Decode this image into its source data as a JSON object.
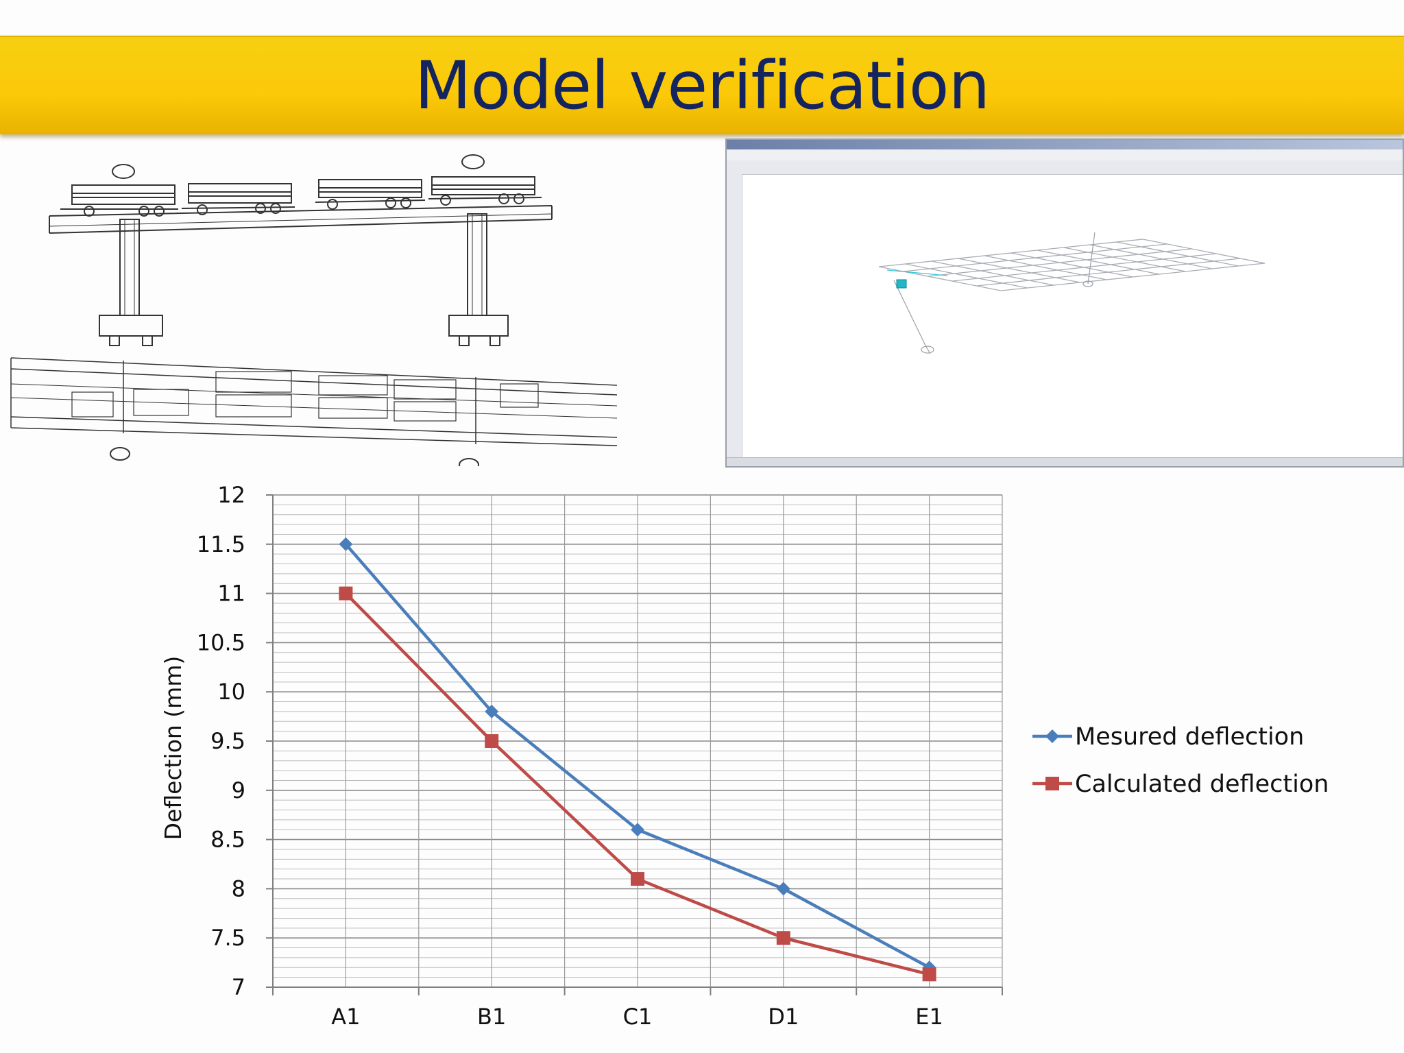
{
  "slide": {
    "title": "Model verification"
  },
  "colors": {
    "title_bar": "#fbc908",
    "title_text": "#14245e",
    "measured": "#4a7ebb",
    "calculated": "#be4b48"
  },
  "images": {
    "bridge_drawing": "bridge elevation and plan sketch with trucks",
    "software_window": "structural analysis software grid model"
  },
  "chart_data": {
    "type": "line",
    "categories": [
      "A1",
      "B1",
      "C1",
      "D1",
      "E1"
    ],
    "series": [
      {
        "name": "Mesured deflection",
        "marker": "diamond",
        "color": "#4a7ebb",
        "values": [
          11.5,
          9.8,
          8.6,
          8.0,
          7.2
        ]
      },
      {
        "name": "Calculated deflection",
        "marker": "square",
        "color": "#be4b48",
        "values": [
          11.0,
          9.5,
          8.1,
          7.5,
          7.13
        ]
      }
    ],
    "ylabel": "Deflection (mm)",
    "xlabel": "",
    "ylim": [
      7,
      12
    ],
    "yticks": [
      "7",
      "7.5",
      "8",
      "8.5",
      "9",
      "9.5",
      "10",
      "10.5",
      "11",
      "11.5",
      "12"
    ],
    "grid": true,
    "legend": "right"
  }
}
